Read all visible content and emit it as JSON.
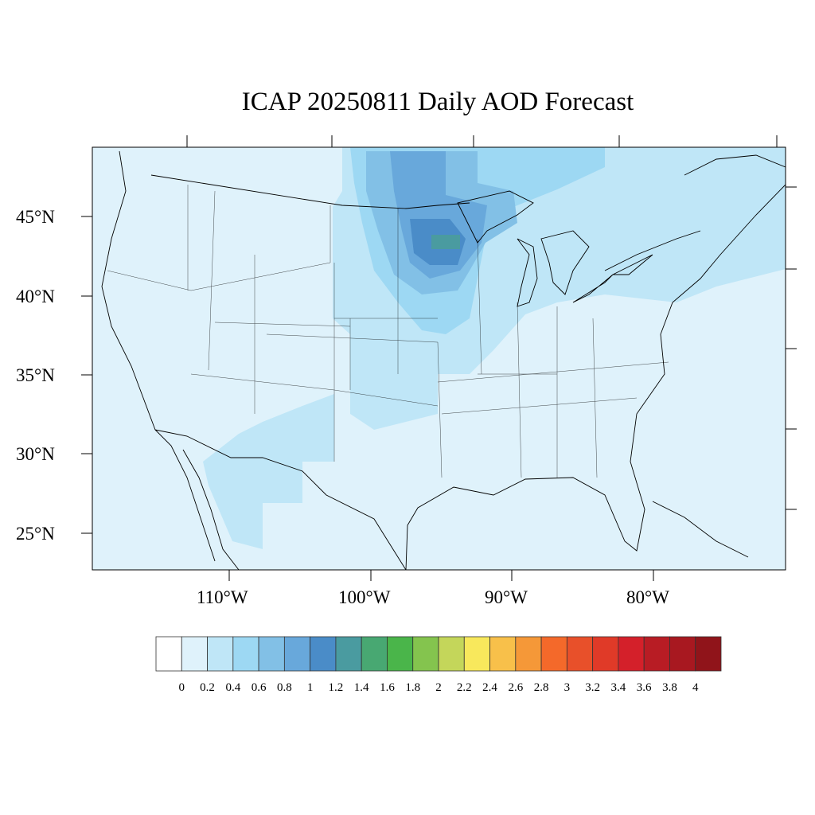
{
  "title": "ICAP 20250811 Daily AOD Forecast",
  "lat_labels": [
    "45°N",
    "40°N",
    "35°N",
    "30°N",
    "25°N"
  ],
  "lon_labels": [
    "110°W",
    "100°W",
    "90°W",
    "80°W"
  ],
  "colorbar": {
    "labels": [
      "0",
      "0.2",
      "0.4",
      "0.6",
      "0.8",
      "1",
      "1.2",
      "1.4",
      "1.6",
      "1.8",
      "2",
      "2.2",
      "2.4",
      "2.6",
      "2.8",
      "3",
      "3.2",
      "3.4",
      "3.6",
      "3.8",
      "4"
    ],
    "colors": [
      "#ffffff",
      "#dff2fb",
      "#bfe6f7",
      "#9dd8f3",
      "#82c0e6",
      "#68a8db",
      "#4a8cc8",
      "#4a9ba0",
      "#48a872",
      "#4ab54a",
      "#84c44e",
      "#c4d65a",
      "#f8e85c",
      "#f8c04a",
      "#f59838",
      "#f4692a",
      "#e8502a",
      "#e03a28",
      "#d4202a",
      "#b81c24",
      "#a81820",
      "#90141a"
    ]
  }
}
